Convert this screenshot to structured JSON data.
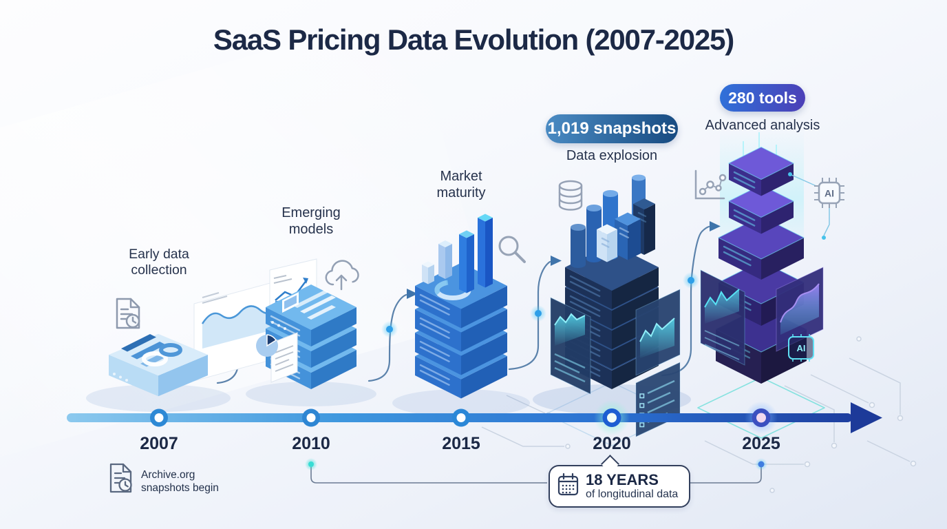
{
  "title": "SaaS Pricing Data Evolution (2007-2025)",
  "timeline": {
    "milestones": [
      {
        "year": "2007",
        "label": "Early data collection",
        "note": "Archive.org snapshots begin"
      },
      {
        "year": "2010",
        "label": "Emerging models"
      },
      {
        "year": "2015",
        "label": "Market maturity"
      },
      {
        "year": "2020",
        "label": "Data explosion",
        "badge": "1,019 snapshots"
      },
      {
        "year": "2025",
        "label": "Advanced analysis",
        "badge": "280 tools"
      }
    ]
  },
  "callout": {
    "headline": "18 YEARS",
    "caption": "of longitudinal data"
  },
  "icons": {
    "ai_chip_label": "AI",
    "names": [
      "document-history-icon",
      "cloud-upload-icon",
      "magnifier-icon",
      "database-icon",
      "scatter-chart-icon",
      "ai-chip-icon",
      "calendar-icon"
    ]
  },
  "colors": {
    "title_text": "#1c2946",
    "badge_snapshots_gradient": [
      "#4b8cc4",
      "#174a80"
    ],
    "badge_tools_gradient": [
      "#2f72da",
      "#4c3eb6"
    ],
    "timeline_gradient": [
      "#8cc9ee",
      "#3e97de",
      "#2a6fd0",
      "#1e3e9f"
    ],
    "callout_border": "#323f5c",
    "connector": "#5b82ab",
    "glow_teal": "#38dcd4",
    "glow_blue": "#3f7de0"
  }
}
